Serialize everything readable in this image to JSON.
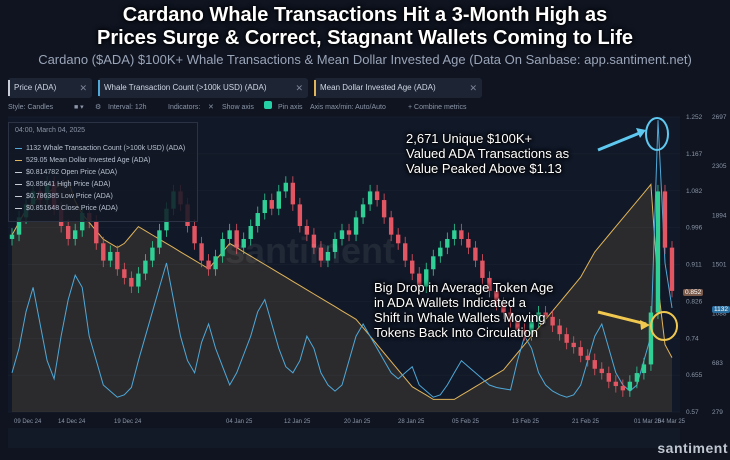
{
  "header": {
    "title_line1": "Cardano Whale Transactions Hit a 3-Month High as",
    "title_line2": "Prices Surge & Correct, Stagnant Wallets Coming to Life",
    "subtitle": "Cardano ($ADA) $100K+ Whale Transactions & Mean Dollar Invested Age (Data On Sanbase: app.santiment.net)"
  },
  "tabs": [
    {
      "label": "Price (ADA)",
      "close": "✕",
      "color": "#c8ccd4"
    },
    {
      "label": "Whale Transaction Count (>100k USD) (ADA)",
      "close": "✕",
      "color": "#4fa8d8"
    },
    {
      "label": "Mean Dollar Invested Age (ADA)",
      "close": "✕",
      "color": "#e0b45a"
    }
  ],
  "toolbar": {
    "style": "Style: Candles",
    "interval": "Interval: 12h",
    "indicators": "Indicators:",
    "show_axis": "Show axis",
    "pin_axis": "Pin axis",
    "axis_minmax": "Axis max/min: Auto/Auto",
    "combine": "+ Combine metrics"
  },
  "info_box": {
    "date": "04:00, March 04, 2025",
    "rows": [
      {
        "text": "1132 Whale Transaction Count (>100k USD) (ADA)",
        "color": "#4fa8d8"
      },
      {
        "text": "529.05 Mean Dollar Invested Age (ADA)",
        "color": "#e0b45a"
      },
      {
        "text": "$0.814782 Open Price (ADA)",
        "color": "#c8ccd4"
      },
      {
        "text": "$0.85641 High Price (ADA)",
        "color": "#c8ccd4"
      },
      {
        "text": "$0.786385 Low Price (ADA)",
        "color": "#c8ccd4"
      },
      {
        "text": "$0.851648 Close Price (ADA)",
        "color": "#c8ccd4"
      }
    ]
  },
  "annotations": {
    "whale": [
      "2,671 Unique $100K+",
      "Valued ADA Transactions as",
      "Value Peaked Above $1.13"
    ],
    "age": [
      "Big Drop in Average Token Age",
      "in ADA Wallets Indicated a",
      "Shift in Whale Wallets Moving",
      "Tokens Back Into Circulation"
    ]
  },
  "watermark": "santiment",
  "center_watermark": "santiment",
  "badges": {
    "price": "0.852",
    "whale": "1132"
  },
  "chart_data": {
    "type": "line",
    "x_ticks": [
      "09 Dec 24",
      "14 Dec 24",
      "19 Dec 24",
      "04 Jan 25",
      "12 Jan 25",
      "20 Jan 25",
      "28 Jan 25",
      "05 Feb 25",
      "13 Feb 25",
      "21 Feb 25",
      "01 Mar 25",
      "04 Mar 25"
    ],
    "price_axis": {
      "ticks": [
        "1.252",
        "1.167",
        "1.082",
        "0.996",
        "0.911",
        "0.826",
        "0.74",
        "0.655",
        "0.57"
      ],
      "ylim": [
        0.57,
        1.252
      ]
    },
    "whale_axis": {
      "ticks": [
        "2697",
        "2305",
        "1894",
        "1501",
        "1088",
        "683",
        "279"
      ],
      "ylim": [
        279,
        2697
      ]
    },
    "age_axis": {
      "ylim": [
        400,
        1100
      ]
    },
    "price_candles_close": [
      0.98,
      1.02,
      1.05,
      1.08,
      1.06,
      1.1,
      1.04,
      1.0,
      0.97,
      0.99,
      1.03,
      1.01,
      0.96,
      0.92,
      0.94,
      0.9,
      0.88,
      0.86,
      0.89,
      0.92,
      0.95,
      0.99,
      1.04,
      1.08,
      1.05,
      1.0,
      0.96,
      0.92,
      0.9,
      0.93,
      0.97,
      0.99,
      0.95,
      0.97,
      1.0,
      1.03,
      1.06,
      1.04,
      1.08,
      1.1,
      1.05,
      1.0,
      0.98,
      0.95,
      0.92,
      0.94,
      0.97,
      0.99,
      0.98,
      1.02,
      1.05,
      1.08,
      1.06,
      1.02,
      0.98,
      0.96,
      0.92,
      0.89,
      0.86,
      0.9,
      0.93,
      0.95,
      0.97,
      0.99,
      0.97,
      0.95,
      0.92,
      0.88,
      0.85,
      0.82,
      0.8,
      0.78,
      0.76,
      0.75,
      0.78,
      0.8,
      0.79,
      0.77,
      0.75,
      0.73,
      0.72,
      0.7,
      0.69,
      0.67,
      0.66,
      0.64,
      0.63,
      0.62,
      0.64,
      0.66,
      0.68,
      0.8,
      1.08,
      0.95,
      0.85
    ],
    "series": [
      {
        "name": "Whale Transaction Count (>100k USD) (ADA)",
        "color": "#4fa8d8",
        "values": [
          600,
          800,
          1100,
          1300,
          1000,
          700,
          550,
          900,
          1200,
          1400,
          1300,
          900,
          700,
          500,
          450,
          400,
          420,
          480,
          700,
          900,
          1100,
          1300,
          1500,
          1200,
          900,
          700,
          600,
          850,
          1000,
          800,
          650,
          500,
          600,
          750,
          900,
          1100,
          1200,
          1000,
          800,
          650,
          600,
          700,
          900,
          800,
          600,
          500,
          450,
          500,
          700,
          900,
          1000,
          900,
          800,
          700,
          600,
          550,
          600,
          650,
          500,
          450,
          400,
          420,
          500,
          600,
          700,
          650,
          600,
          550,
          500,
          480,
          470,
          460,
          700,
          900,
          800,
          600,
          500,
          450,
          420,
          400,
          420,
          500,
          700,
          900,
          1000,
          800,
          600,
          500,
          450,
          500,
          700,
          900,
          2671,
          1500,
          1132
        ]
      },
      {
        "name": "Mean Dollar Invested Age (ADA)",
        "color": "#e0b45a",
        "values": [
          820,
          850,
          880,
          900,
          910,
          920,
          930,
          940,
          950,
          900,
          870,
          850,
          830,
          810,
          800,
          790,
          800,
          820,
          840,
          830,
          820,
          810,
          800,
          790,
          780,
          770,
          760,
          750,
          740,
          760,
          780,
          800,
          790,
          780,
          770,
          760,
          750,
          740,
          730,
          720,
          710,
          700,
          690,
          680,
          670,
          660,
          650,
          640,
          630,
          620,
          600,
          580,
          560,
          540,
          520,
          500,
          480,
          460,
          450,
          440,
          430,
          430,
          430,
          430,
          440,
          450,
          460,
          470,
          480,
          490,
          500,
          520,
          540,
          560,
          580,
          600,
          620,
          640,
          660,
          680,
          700,
          720,
          750,
          780,
          800,
          820,
          840,
          860,
          880,
          900,
          920,
          940,
          700,
          560,
          529
        ]
      }
    ]
  }
}
